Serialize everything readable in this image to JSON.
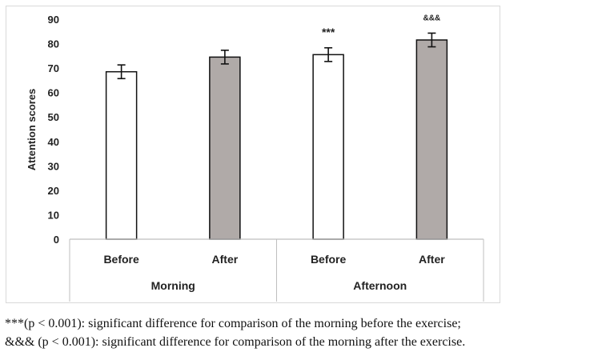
{
  "chart_data": {
    "type": "bar",
    "title": "",
    "xlabel": "",
    "ylabel": "Attention scores",
    "ylim": [
      0,
      90
    ],
    "yticks": [
      0,
      10,
      20,
      30,
      40,
      50,
      60,
      70,
      80,
      90
    ],
    "grid": false,
    "groups": [
      "Morning",
      "Afternoon"
    ],
    "categories": [
      "Before",
      "After",
      "Before",
      "After"
    ],
    "values": [
      68.5,
      74.5,
      75.5,
      81.5
    ],
    "errors": [
      2.8,
      2.8,
      2.8,
      2.8
    ],
    "bar_colors": [
      "#ffffff",
      "#b0aaa8",
      "#ffffff",
      "#b0aaa8"
    ],
    "annotations": [
      "",
      "",
      "***",
      "&&&"
    ]
  },
  "caption": {
    "line1": "***(p < 0.001): significant difference for comparison of the morning before the exercise;",
    "line2": "&&& (p < 0.001): significant difference for comparison of the morning after the exercise."
  }
}
